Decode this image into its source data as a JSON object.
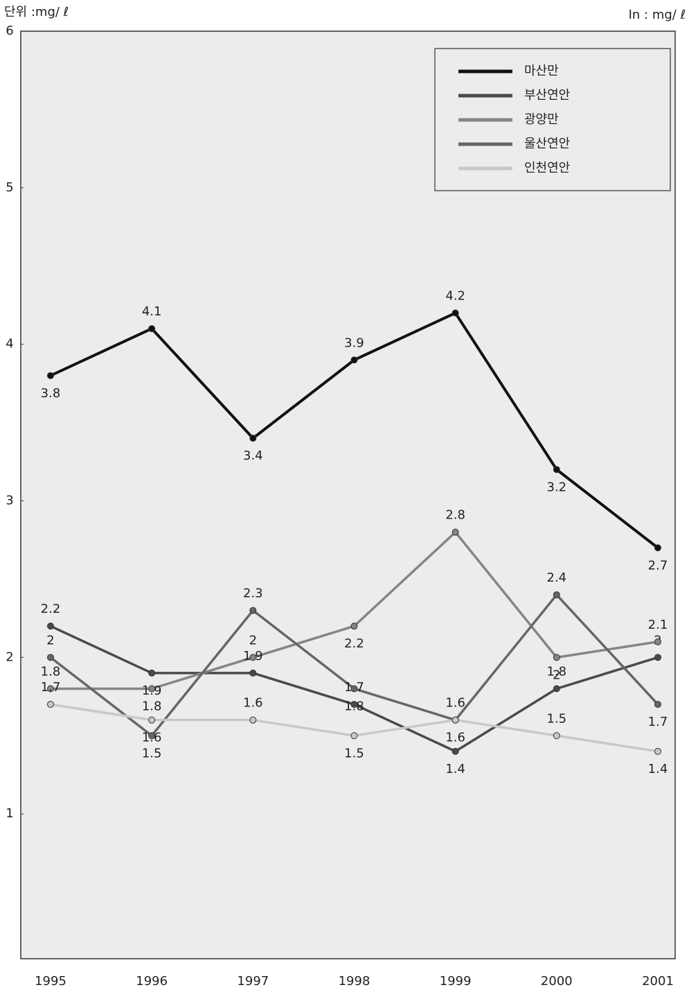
{
  "chart_data": {
    "type": "line",
    "unit_label": "단위 :mg/ ℓ",
    "unit_label_en": "In : mg/ ℓ",
    "categories": [
      "1995",
      "1996",
      "1997",
      "1998",
      "1999",
      "2000",
      "2001"
    ],
    "series": [
      {
        "name": "마산만",
        "color": "#111111",
        "values": [
          3.8,
          4.1,
          3.4,
          3.9,
          4.2,
          3.2,
          2.7
        ]
      },
      {
        "name": "부산연안",
        "color": "#4a4a4a",
        "values": [
          2.2,
          1.9,
          1.9,
          1.7,
          1.4,
          1.8,
          2.0
        ]
      },
      {
        "name": "광양만",
        "color": "#858585",
        "values": [
          1.8,
          1.8,
          2.0,
          2.2,
          2.8,
          2.0,
          2.1
        ]
      },
      {
        "name": "울산연안",
        "color": "#666666",
        "values": [
          2.0,
          1.5,
          2.3,
          1.8,
          1.6,
          2.4,
          1.7
        ]
      },
      {
        "name": "인천연안",
        "color": "#c8c8c8",
        "values": [
          1.7,
          1.6,
          1.6,
          1.5,
          1.6,
          1.5,
          1.4
        ]
      }
    ],
    "ylim": [
      0,
      6
    ],
    "yticks": [
      1,
      2,
      3,
      4,
      5,
      6
    ],
    "legend": "top-right"
  }
}
